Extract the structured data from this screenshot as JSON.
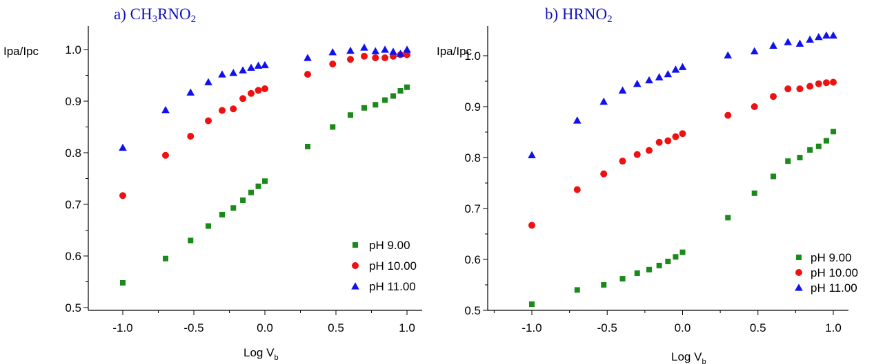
{
  "colors": {
    "green": "#1a8a1a",
    "red": "#ee1111",
    "blue": "#1111ee",
    "axis": "#000000"
  },
  "chart_data": [
    {
      "type": "scatter",
      "title_main": "a) CH",
      "title_sub": "3",
      "title_rest": "RNO",
      "title_sub2": "2",
      "ylabel": "Ipa/Ipc",
      "xlabel_main": "Log V",
      "xlabel_sub": "b",
      "xlim": [
        -1.25,
        1.25
      ],
      "ylim": [
        0.5,
        1.05
      ],
      "x_ticks": [
        -1.0,
        -0.5,
        0.0,
        0.5,
        1.0
      ],
      "x_tick_labels": [
        "-1.0",
        "-0.5",
        "0.0",
        "0.5",
        "1.0"
      ],
      "y_ticks": [
        0.5,
        0.6,
        0.7,
        0.8,
        0.9,
        1.0
      ],
      "y_tick_labels": [
        "0.5",
        "0.6",
        "0.7",
        "0.8",
        "0.9",
        "1.0"
      ],
      "legend_position": "bottom-right",
      "series": [
        {
          "name": "pH 9.00",
          "marker": "square",
          "color": "#1a8a1a",
          "x": [
            -1.0,
            -0.699,
            -0.523,
            -0.398,
            -0.301,
            -0.222,
            -0.155,
            -0.097,
            -0.046,
            0.0,
            0.301,
            0.477,
            0.602,
            0.699,
            0.778,
            0.845,
            0.903,
            0.954,
            1.0
          ],
          "y": [
            0.548,
            0.595,
            0.63,
            0.658,
            0.68,
            0.693,
            0.708,
            0.723,
            0.735,
            0.745,
            0.812,
            0.85,
            0.873,
            0.887,
            0.893,
            0.902,
            0.91,
            0.92,
            0.927
          ]
        },
        {
          "name": "pH 10.00",
          "marker": "circle",
          "color": "#ee1111",
          "x": [
            -1.0,
            -0.699,
            -0.523,
            -0.398,
            -0.301,
            -0.222,
            -0.155,
            -0.097,
            -0.046,
            0.0,
            0.301,
            0.477,
            0.602,
            0.699,
            0.778,
            0.845,
            0.903,
            0.954,
            1.0
          ],
          "y": [
            0.717,
            0.795,
            0.832,
            0.862,
            0.882,
            0.885,
            0.905,
            0.915,
            0.921,
            0.924,
            0.952,
            0.972,
            0.981,
            0.987,
            0.984,
            0.984,
            0.987,
            0.99,
            0.99
          ]
        },
        {
          "name": "pH 11.00",
          "marker": "triangle",
          "color": "#1111ee",
          "x": [
            -1.0,
            -0.699,
            -0.523,
            -0.398,
            -0.301,
            -0.222,
            -0.155,
            -0.097,
            -0.046,
            0.0,
            0.301,
            0.477,
            0.602,
            0.699,
            0.778,
            0.845,
            0.903,
            0.954,
            1.0
          ],
          "y": [
            0.81,
            0.883,
            0.917,
            0.937,
            0.952,
            0.955,
            0.96,
            0.965,
            0.969,
            0.97,
            0.984,
            0.995,
            0.998,
            1.004,
            0.997,
            1.0,
            0.996,
            0.992,
            1.0
          ]
        }
      ]
    },
    {
      "type": "scatter",
      "title_main": "b) HRNO",
      "title_sub": "2",
      "title_rest": "",
      "title_sub2": "",
      "ylabel": "Ipa/Ipc",
      "xlabel_main": "Log V",
      "xlabel_sub": "b",
      "xlim": [
        -1.25,
        1.25
      ],
      "ylim": [
        0.5,
        1.05
      ],
      "x_ticks": [
        -1.0,
        -0.5,
        0.0,
        0.5,
        1.0
      ],
      "x_tick_labels": [
        "-1.0",
        "-0.5",
        "0.0",
        "0.5",
        "1.0"
      ],
      "y_ticks": [
        0.5,
        0.6,
        0.7,
        0.8,
        0.9,
        1.0
      ],
      "y_tick_labels": [
        "0.5",
        "0.6",
        "0.7",
        "0.8",
        "0.9",
        "1.0"
      ],
      "legend_position": "bottom-right",
      "series": [
        {
          "name": "pH 9.00",
          "marker": "square",
          "color": "#1a8a1a",
          "x": [
            -1.0,
            -0.699,
            -0.523,
            -0.398,
            -0.301,
            -0.222,
            -0.155,
            -0.097,
            -0.046,
            0.0,
            0.301,
            0.477,
            0.602,
            0.699,
            0.778,
            0.845,
            0.903,
            0.954,
            1.0
          ],
          "y": [
            0.512,
            0.54,
            0.55,
            0.562,
            0.573,
            0.58,
            0.588,
            0.596,
            0.605,
            0.614,
            0.682,
            0.73,
            0.763,
            0.793,
            0.8,
            0.815,
            0.822,
            0.833,
            0.851
          ]
        },
        {
          "name": "pH 10.00",
          "marker": "circle",
          "color": "#ee1111",
          "x": [
            -1.0,
            -0.699,
            -0.523,
            -0.398,
            -0.301,
            -0.222,
            -0.155,
            -0.097,
            -0.046,
            0.0,
            0.301,
            0.477,
            0.602,
            0.699,
            0.778,
            0.845,
            0.903,
            0.954,
            1.0
          ],
          "y": [
            0.667,
            0.737,
            0.768,
            0.793,
            0.806,
            0.814,
            0.83,
            0.833,
            0.841,
            0.847,
            0.883,
            0.9,
            0.92,
            0.935,
            0.935,
            0.94,
            0.945,
            0.947,
            0.948
          ]
        },
        {
          "name": "pH 11.00",
          "marker": "triangle",
          "color": "#1111ee",
          "x": [
            -1.0,
            -0.699,
            -0.523,
            -0.398,
            -0.301,
            -0.222,
            -0.155,
            -0.097,
            -0.046,
            0.0,
            0.301,
            0.477,
            0.602,
            0.699,
            0.778,
            0.845,
            0.903,
            0.954,
            1.0
          ],
          "y": [
            0.805,
            0.873,
            0.91,
            0.932,
            0.945,
            0.952,
            0.958,
            0.964,
            0.973,
            0.978,
            1.001,
            1.009,
            1.02,
            1.027,
            1.024,
            1.032,
            1.037,
            1.04,
            1.04
          ]
        }
      ]
    }
  ]
}
